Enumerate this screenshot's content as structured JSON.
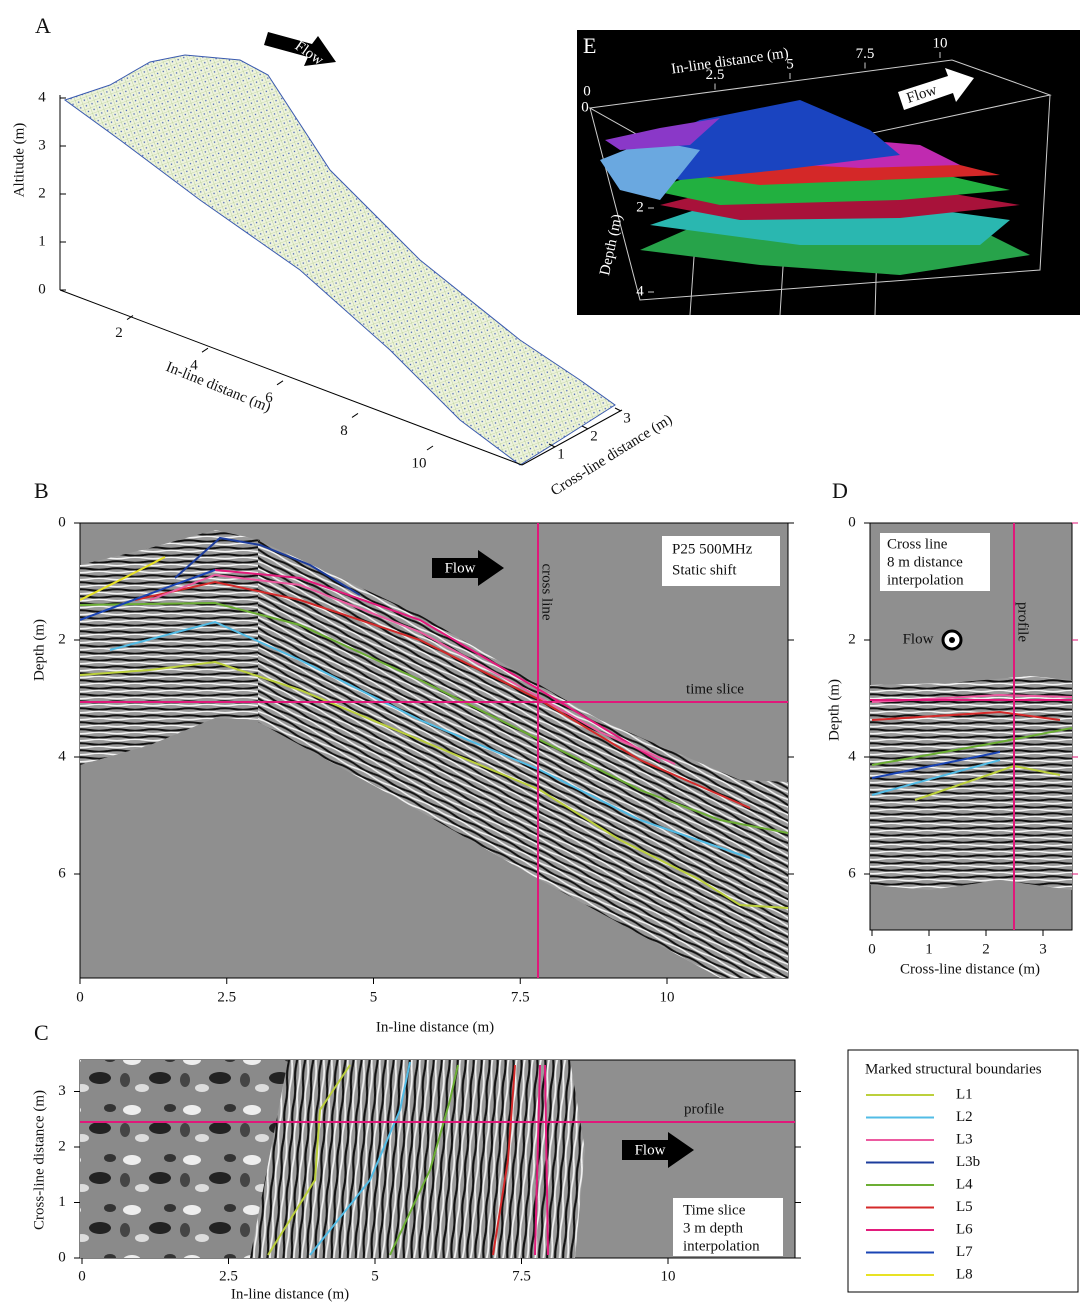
{
  "panels": {
    "A": {
      "label": "A",
      "flow": "Flow",
      "y_label": "Altitude (m)",
      "y_ticks": [
        0,
        1,
        2,
        3,
        4
      ],
      "x_label": "In-line distanc (m)",
      "x_ticks": [
        2,
        4,
        6,
        8,
        10
      ],
      "z_label": "Cross-line distance (m)",
      "z_ticks": [
        1,
        2,
        3
      ]
    },
    "B": {
      "label": "B",
      "annotation": [
        "P25 500MHz",
        "Static shift"
      ],
      "flow": "Flow",
      "cross_line": "cross line",
      "time_slice": "time slice",
      "x_label": "In-line distance (m)",
      "x_ticks": [
        0,
        2.5,
        5,
        7.5,
        10
      ],
      "y_label": "Depth (m)",
      "y_ticks": [
        0,
        2,
        4,
        6
      ]
    },
    "C": {
      "label": "C",
      "annotation": [
        "Time slice",
        "3 m depth",
        "interpolation"
      ],
      "flow": "Flow",
      "profile": "profile",
      "x_label": "In-line distance (m)",
      "x_ticks": [
        0,
        2.5,
        5,
        7.5,
        10
      ],
      "y_label": "Cross-line distance (m)",
      "y_ticks": [
        0,
        1,
        2,
        3
      ]
    },
    "D": {
      "label": "D",
      "annotation": [
        "Cross line",
        "8 m distance",
        "interpolation"
      ],
      "flow": "Flow",
      "profile": "profile",
      "x_label": "Cross-line distance (m)",
      "x_ticks": [
        0,
        1,
        2,
        3
      ],
      "y_label": "Depth (m)",
      "y_ticks": [
        0,
        2,
        4,
        6
      ]
    },
    "E": {
      "label": "E",
      "x_label": "In-line distance (m)",
      "x_ticks": [
        2.5,
        5,
        7.5,
        10
      ],
      "zero_ticks": [
        0,
        0
      ],
      "y_label": "Depth (m)",
      "y_ticks": [
        2,
        4
      ],
      "flow": "Flow"
    }
  },
  "legend": {
    "title": "Marked structural boundaries",
    "items": [
      {
        "name": "L1",
        "color": "#bcd03c"
      },
      {
        "name": "L2",
        "color": "#52bce6"
      },
      {
        "name": "L3",
        "color": "#ec5aa0"
      },
      {
        "name": "L3b",
        "color": "#1c3c9c"
      },
      {
        "name": "L4",
        "color": "#6cae34"
      },
      {
        "name": "L5",
        "color": "#d42a2a"
      },
      {
        "name": "L6",
        "color": "#e21c7c"
      },
      {
        "name": "L7",
        "color": "#1a44b4"
      },
      {
        "name": "L8",
        "color": "#e8e224"
      }
    ]
  }
}
